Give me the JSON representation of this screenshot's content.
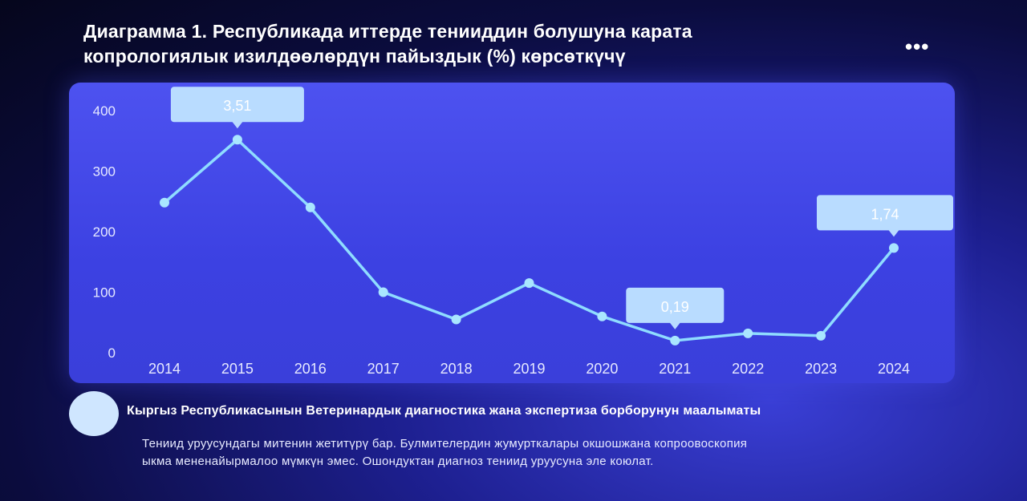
{
  "title_line1": "Диаграмма 1. Республикада иттерде тенииддин болушуна карата",
  "title_line2": "копрологиялык изилдөөлөрдүн пайыздык (%) көрсөткүчү",
  "more_label": "•••",
  "source": "Кыргыз Республикасынын Ветеринардык диагностика жана экспертиза борборунун маалыматы",
  "note_line1": "Тениид уруусундагы митенин жетитүрү бар. Булмителердин жумурткалары окшошжана копроовоскопия",
  "note_line2": "ыкма мененайырмалоо мүмкүн эмес. Ошондуктан диагноз тениид уруусуна эле коюлат.",
  "colors": {
    "line": "#8fdcff",
    "point": "#a9e6ff",
    "callout": "#b9dcff",
    "axis_text": "#e6e9ff"
  },
  "chart_data": {
    "type": "line",
    "x": [
      "2014",
      "2015",
      "2016",
      "2017",
      "2018",
      "2019",
      "2020",
      "2021",
      "2022",
      "2023",
      "2024"
    ],
    "values": [
      248,
      352,
      240,
      100,
      55,
      115,
      60,
      20,
      32,
      28,
      173
    ],
    "ylim": [
      0,
      400
    ],
    "yticks": [
      "0",
      "100",
      "200",
      "300",
      "400"
    ],
    "grid": false,
    "annotations": [
      {
        "x": "2015",
        "label": "3,51"
      },
      {
        "x": "2021",
        "label": "0,19"
      },
      {
        "x": "2024",
        "label": "1,74"
      }
    ]
  }
}
